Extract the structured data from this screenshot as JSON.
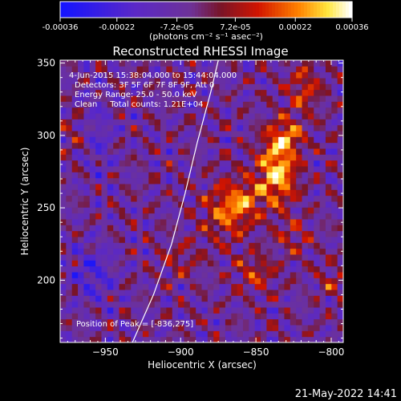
{
  "chart_data": {
    "type": "heatmap",
    "title": "Reconstructed RHESSI Image",
    "xlabel": "Heliocentric X (arcsec)",
    "ylabel": "Heliocentric Y (arcsec)",
    "xlim": [
      -980,
      -792
    ],
    "ylim": [
      157,
      352
    ],
    "xticks": [
      -950,
      -900,
      -850,
      -800
    ],
    "yticks": [
      200,
      250,
      300,
      350
    ],
    "colorbar": {
      "min": -0.00036,
      "max": 0.00036,
      "ticks": [
        "-0.00036",
        "-0.00022",
        "-7.2e-05",
        "7.2e-05",
        "0.00022",
        "0.00036"
      ],
      "tick_values": [
        -0.00036,
        -0.00022,
        -7.2e-05,
        7.2e-05,
        0.00022,
        0.00036
      ],
      "unit_label": "(photons cm⁻² s⁻¹ asec⁻²)"
    },
    "annotations": [
      "4-Jun-2015 15:38:04.000 to 15:44:04.000",
      "Detectors: 3F 5F 6F 7F 8F 9F, Att 0",
      "Energy Range: 25.0 - 50.0 keV",
      "Clean     Total counts: 1.21E+04"
    ],
    "peak_label": "Position of Peak = [-836,275]",
    "peak": [
      -836,
      275
    ],
    "limb_points": [
      [
        -932,
        157
      ],
      [
        -918,
        190
      ],
      [
        -906,
        225
      ],
      [
        -897,
        260
      ],
      [
        -889,
        295
      ],
      [
        -880,
        330
      ],
      [
        -875,
        352
      ]
    ],
    "sources": [
      {
        "x": -836,
        "y": 275,
        "sx": 9,
        "sy": 16,
        "amp": 0.00036
      },
      {
        "x": -830,
        "y": 300,
        "sx": 8,
        "sy": 8,
        "amp": 0.00022
      },
      {
        "x": -870,
        "y": 248,
        "sx": 10,
        "sy": 14,
        "amp": 0.00022
      },
      {
        "x": -857,
        "y": 255,
        "sx": 8,
        "sy": 10,
        "amp": 0.00018
      },
      {
        "x": -850,
        "y": 205,
        "sx": 9,
        "sy": 9,
        "amp": 0.00016
      },
      {
        "x": -818,
        "y": 332,
        "sx": 8,
        "sy": 12,
        "amp": 0.00018
      },
      {
        "x": -825,
        "y": 230,
        "sx": 9,
        "sy": 8,
        "amp": 0.00012
      },
      {
        "x": -800,
        "y": 200,
        "sx": 6,
        "sy": 8,
        "amp": 0.00012
      },
      {
        "x": -900,
        "y": 215,
        "sx": 10,
        "sy": 10,
        "amp": 0.0001
      },
      {
        "x": -970,
        "y": 300,
        "sx": 7,
        "sy": 10,
        "amp": 8e-05
      },
      {
        "x": -958,
        "y": 205,
        "sx": 10,
        "sy": 14,
        "amp": -0.00014
      },
      {
        "x": -955,
        "y": 300,
        "sx": 8,
        "sy": 20,
        "amp": -0.0001
      }
    ]
  },
  "timestamp": "21-May-2022 14:41"
}
